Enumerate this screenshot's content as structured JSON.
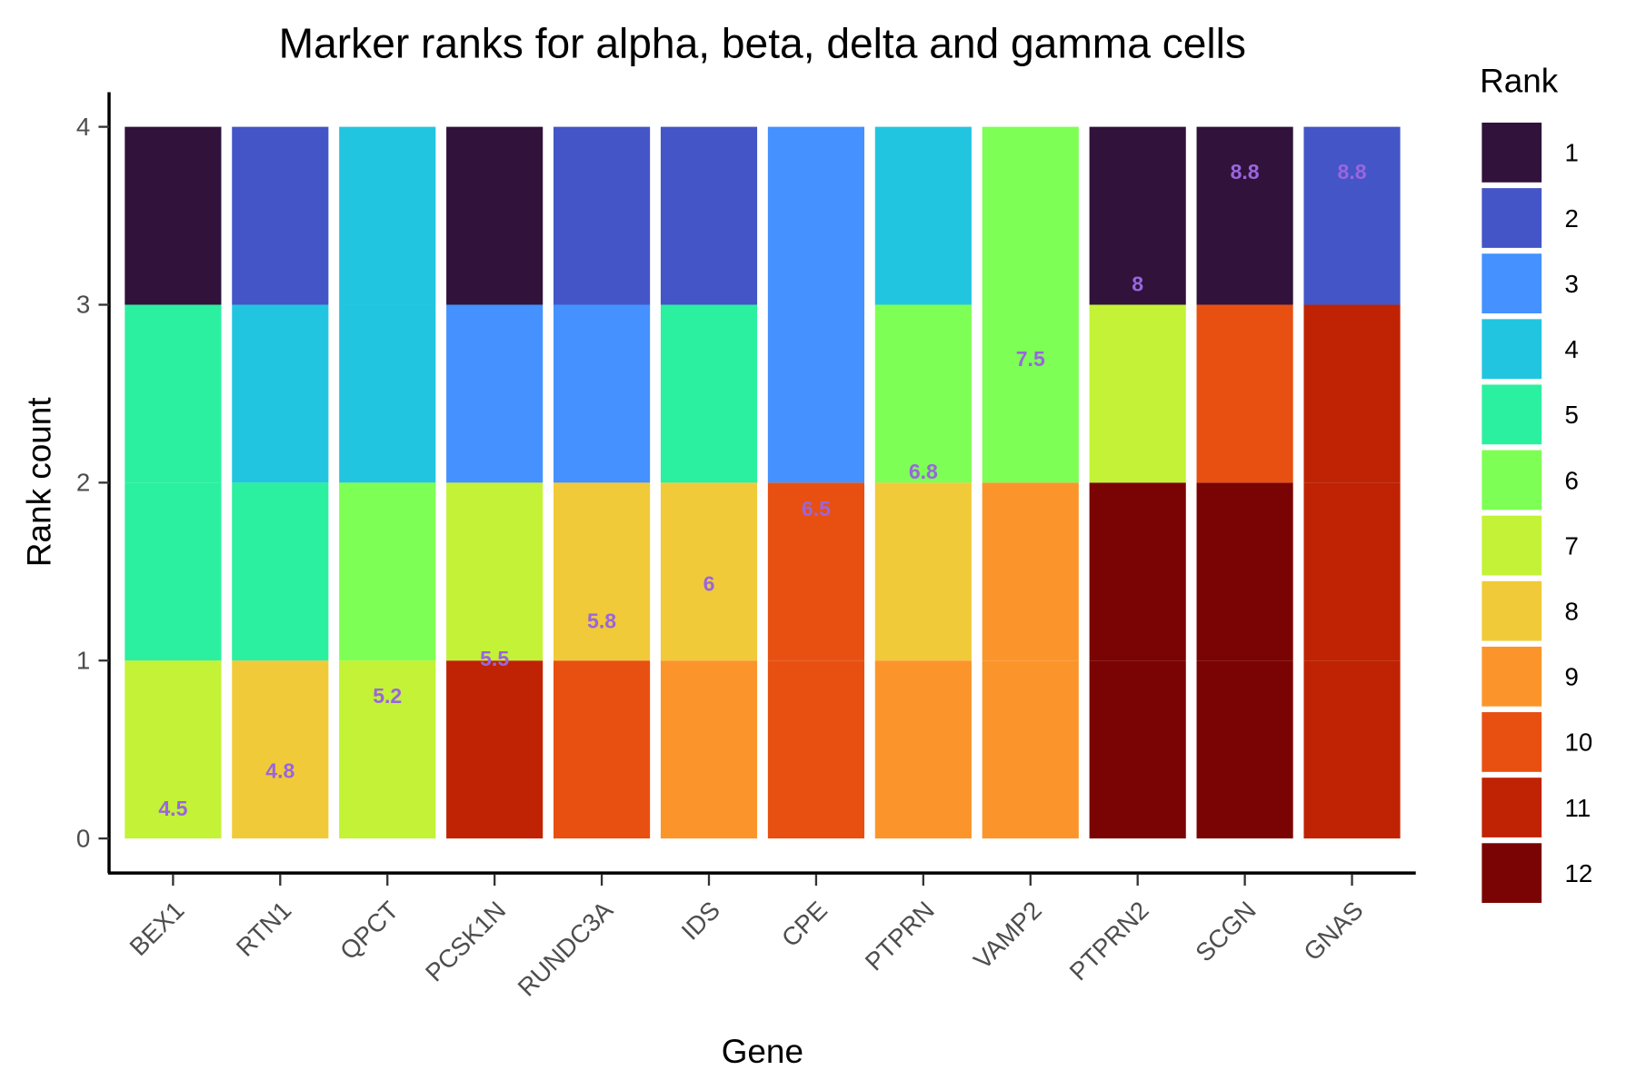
{
  "chart_data": {
    "type": "bar",
    "stacked": true,
    "title": "Marker ranks for alpha, beta, delta and gamma cells",
    "xlabel": "Gene",
    "ylabel": "Rank count",
    "ylim": [
      0,
      4
    ],
    "yticks": [
      "0",
      "1",
      "2",
      "3",
      "4"
    ],
    "grid": false,
    "legend": {
      "title": "Rank",
      "position": "right",
      "entries": [
        "1",
        "2",
        "3",
        "4",
        "5",
        "6",
        "7",
        "8",
        "9",
        "10",
        "11",
        "12"
      ]
    },
    "rank_colors": {
      "1": "#30123b",
      "2": "#4455c7",
      "3": "#4491ff",
      "4": "#22c5e0",
      "5": "#2bf0a0",
      "6": "#7eff55",
      "7": "#c3f236",
      "8": "#f1ca3a",
      "9": "#fb952b",
      "10": "#e85012",
      "11": "#bf2303",
      "12": "#7a0403"
    },
    "mean_label_color": "#9966dd",
    "categories": [
      "BEX1",
      "RTN1",
      "QPCT",
      "PCSK1N",
      "RUNDC3A",
      "IDS",
      "CPE",
      "PTPRN",
      "VAMP2",
      "PTPRN2",
      "SCGN",
      "GNAS"
    ],
    "ranks_per_gene": [
      [
        1,
        5,
        5,
        7
      ],
      [
        2,
        4,
        5,
        8
      ],
      [
        4,
        4,
        6,
        7
      ],
      [
        1,
        3,
        7,
        11
      ],
      [
        2,
        3,
        8,
        10
      ],
      [
        2,
        5,
        8,
        9
      ],
      [
        3,
        3,
        10,
        10
      ],
      [
        4,
        6,
        8,
        9
      ],
      [
        6,
        6,
        9,
        9
      ],
      [
        1,
        7,
        12,
        12
      ],
      [
        1,
        10,
        12,
        12
      ],
      [
        2,
        11,
        11,
        11
      ]
    ],
    "mean_labels": [
      "4.5",
      "4.8",
      "5.2",
      "5.5",
      "5.8",
      "6",
      "6.5",
      "6.8",
      "7.5",
      "8",
      "8.8",
      "8.8"
    ],
    "mean_values": [
      4.5,
      4.75,
      5.25,
      5.5,
      5.75,
      6,
      6.5,
      6.75,
      7.5,
      8,
      8.75,
      8.75
    ]
  }
}
